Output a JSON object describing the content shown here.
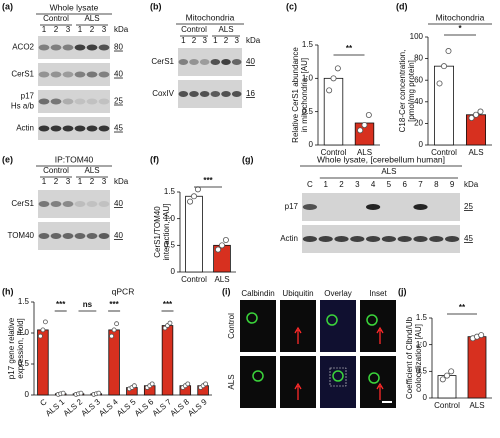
{
  "panels": {
    "a": {
      "letter": "(a)",
      "title": "Whole lysate",
      "groups": [
        "Control",
        "ALS"
      ],
      "lanes": [
        "1",
        "2",
        "3",
        "1",
        "2",
        "3"
      ],
      "unit": "kDa",
      "rows": [
        {
          "label": "ACO2",
          "kda": 80
        },
        {
          "label": "CerS1",
          "kda": 40
        },
        {
          "label": "p17",
          "sublabel": "Hs a/b",
          "kda": 25
        },
        {
          "label": "Actin",
          "kda": 45
        }
      ]
    },
    "b": {
      "letter": "(b)",
      "title": "Mitochondria",
      "groups": [
        "Control",
        "ALS"
      ],
      "lanes": [
        "1",
        "2",
        "3",
        "1",
        "2",
        "3"
      ],
      "unit": "kDa",
      "rows": [
        {
          "label": "CerS1",
          "kda": 40
        },
        {
          "label": "CoxIV",
          "kda": 16
        }
      ]
    },
    "e": {
      "letter": "(e)",
      "title": "IP:TOM40",
      "groups": [
        "Control",
        "ALS"
      ],
      "lanes": [
        "1",
        "2",
        "3",
        "1",
        "2",
        "3"
      ],
      "unit": "kDa",
      "rows": [
        {
          "label": "CerS1",
          "kda": 40
        },
        {
          "label": "TOM40",
          "kda": 40
        }
      ]
    },
    "g": {
      "letter": "(g)",
      "title": "Whole lysate, [cerebellum human]",
      "groups": [
        "ALS"
      ],
      "lanes": [
        "C",
        "1",
        "2",
        "3",
        "4",
        "5",
        "6",
        "7",
        "8",
        "9"
      ],
      "unit": "kDa",
      "rows": [
        {
          "label": "p17",
          "kda": 25
        },
        {
          "label": "Actin",
          "kda": 45
        }
      ]
    },
    "i": {
      "letter": "(i)",
      "columns": [
        "Calbindin",
        "Ubiquitin",
        "Overlay",
        "Inset"
      ],
      "rows": [
        "Control",
        "ALS"
      ]
    }
  },
  "chart_data": [
    {
      "type": "bar",
      "letter": "(c)",
      "ylabel": [
        "Relative CerS1 abundance",
        "in mitochondria, [AU]"
      ],
      "categories": [
        "Control",
        "ALS"
      ],
      "values": [
        1.0,
        0.33
      ],
      "colors": [
        "#ffffff",
        "#d7301f"
      ],
      "points": [
        [
          0.82,
          1.0,
          1.15
        ],
        [
          0.22,
          0.3,
          0.45
        ]
      ],
      "ylim": [
        0,
        1.5
      ],
      "yticks": [
        0,
        0.5,
        {
          "value": 1,
          "label": "1.0"
        },
        1.5
      ],
      "annotations": [
        "**"
      ]
    },
    {
      "type": "bar",
      "letter": "(d)",
      "title": "Mitochondria",
      "ylabel": [
        "C18-Cer concentration,",
        "[pmol/mg protein]"
      ],
      "categories": [
        "Control",
        "ALS"
      ],
      "values": [
        73,
        28
      ],
      "colors": [
        "#ffffff",
        "#d7301f"
      ],
      "points": [
        [
          57,
          73,
          87
        ],
        [
          25,
          28,
          31
        ]
      ],
      "ylim": [
        0,
        100
      ],
      "yticks": [
        0,
        20,
        40,
        60,
        80,
        100
      ],
      "annotations": [
        "*"
      ]
    },
    {
      "type": "bar",
      "letter": "(f)",
      "ylabel": [
        "CerS1/TOM40",
        "interaction, [AU]"
      ],
      "categories": [
        "Control",
        "ALS"
      ],
      "values": [
        1.42,
        0.5
      ],
      "colors": [
        "#ffffff",
        "#d7301f"
      ],
      "points": [
        [
          1.32,
          1.42,
          1.55
        ],
        [
          0.42,
          0.5,
          0.6
        ]
      ],
      "ylim": [
        0,
        1.5
      ],
      "yticks": [
        0,
        0.5,
        {
          "value": 1,
          "label": "1.0"
        },
        1.5
      ],
      "annotations": [
        "***"
      ]
    },
    {
      "type": "bar",
      "letter": "(h)",
      "title": "qPCR",
      "ylabel": [
        "p17 gene relative",
        "expression, [fold]"
      ],
      "categories": [
        "C",
        "ALS 1",
        "ALS 2",
        "ALS 3",
        "ALS 4",
        "ALS 5",
        "ALS 6",
        "ALS 7",
        "ALS 8",
        "ALS 9"
      ],
      "values": [
        1.05,
        0.02,
        0.02,
        0.02,
        1.05,
        0.12,
        0.15,
        1.12,
        0.15,
        0.15
      ],
      "colors": [
        "#d7301f",
        "#d7301f",
        "#d7301f",
        "#d7301f",
        "#d7301f",
        "#d7301f",
        "#d7301f",
        "#d7301f",
        "#d7301f",
        "#d7301f"
      ],
      "points": [
        [
          0.95,
          1.05,
          1.18
        ],
        [
          0.01,
          0.02,
          0.03
        ],
        [
          0.01,
          0.02,
          0.03
        ],
        [
          0.01,
          0.02,
          0.03
        ],
        [
          0.95,
          1.05,
          1.15
        ],
        [
          0.1,
          0.12,
          0.15
        ],
        [
          0.12,
          0.15,
          0.18
        ],
        [
          1.08,
          1.12,
          1.16
        ],
        [
          0.12,
          0.15,
          0.18
        ],
        [
          0.12,
          0.15,
          0.18
        ]
      ],
      "ylim": [
        0,
        1.5
      ],
      "yticks": [
        0,
        0.5,
        {
          "value": 1,
          "label": "1.0"
        },
        1.5
      ],
      "annotations": [
        "***",
        "ns",
        "***",
        "***"
      ]
    },
    {
      "type": "bar",
      "letter": "(j)",
      "ylabel": [
        "Coefficient of Clbnd/Ub",
        "colocalization, [AU]"
      ],
      "categories": [
        "Control",
        "ALS"
      ],
      "values": [
        0.42,
        1.15
      ],
      "colors": [
        "#ffffff",
        "#d7301f"
      ],
      "points": [
        [
          0.35,
          0.42,
          0.5
        ],
        [
          1.12,
          1.15,
          1.18
        ]
      ],
      "ylim": [
        0,
        1.5
      ],
      "yticks": [
        0,
        0.5,
        {
          "value": 1,
          "label": "1.0"
        },
        1.5
      ],
      "annotations": [
        "**"
      ]
    }
  ]
}
